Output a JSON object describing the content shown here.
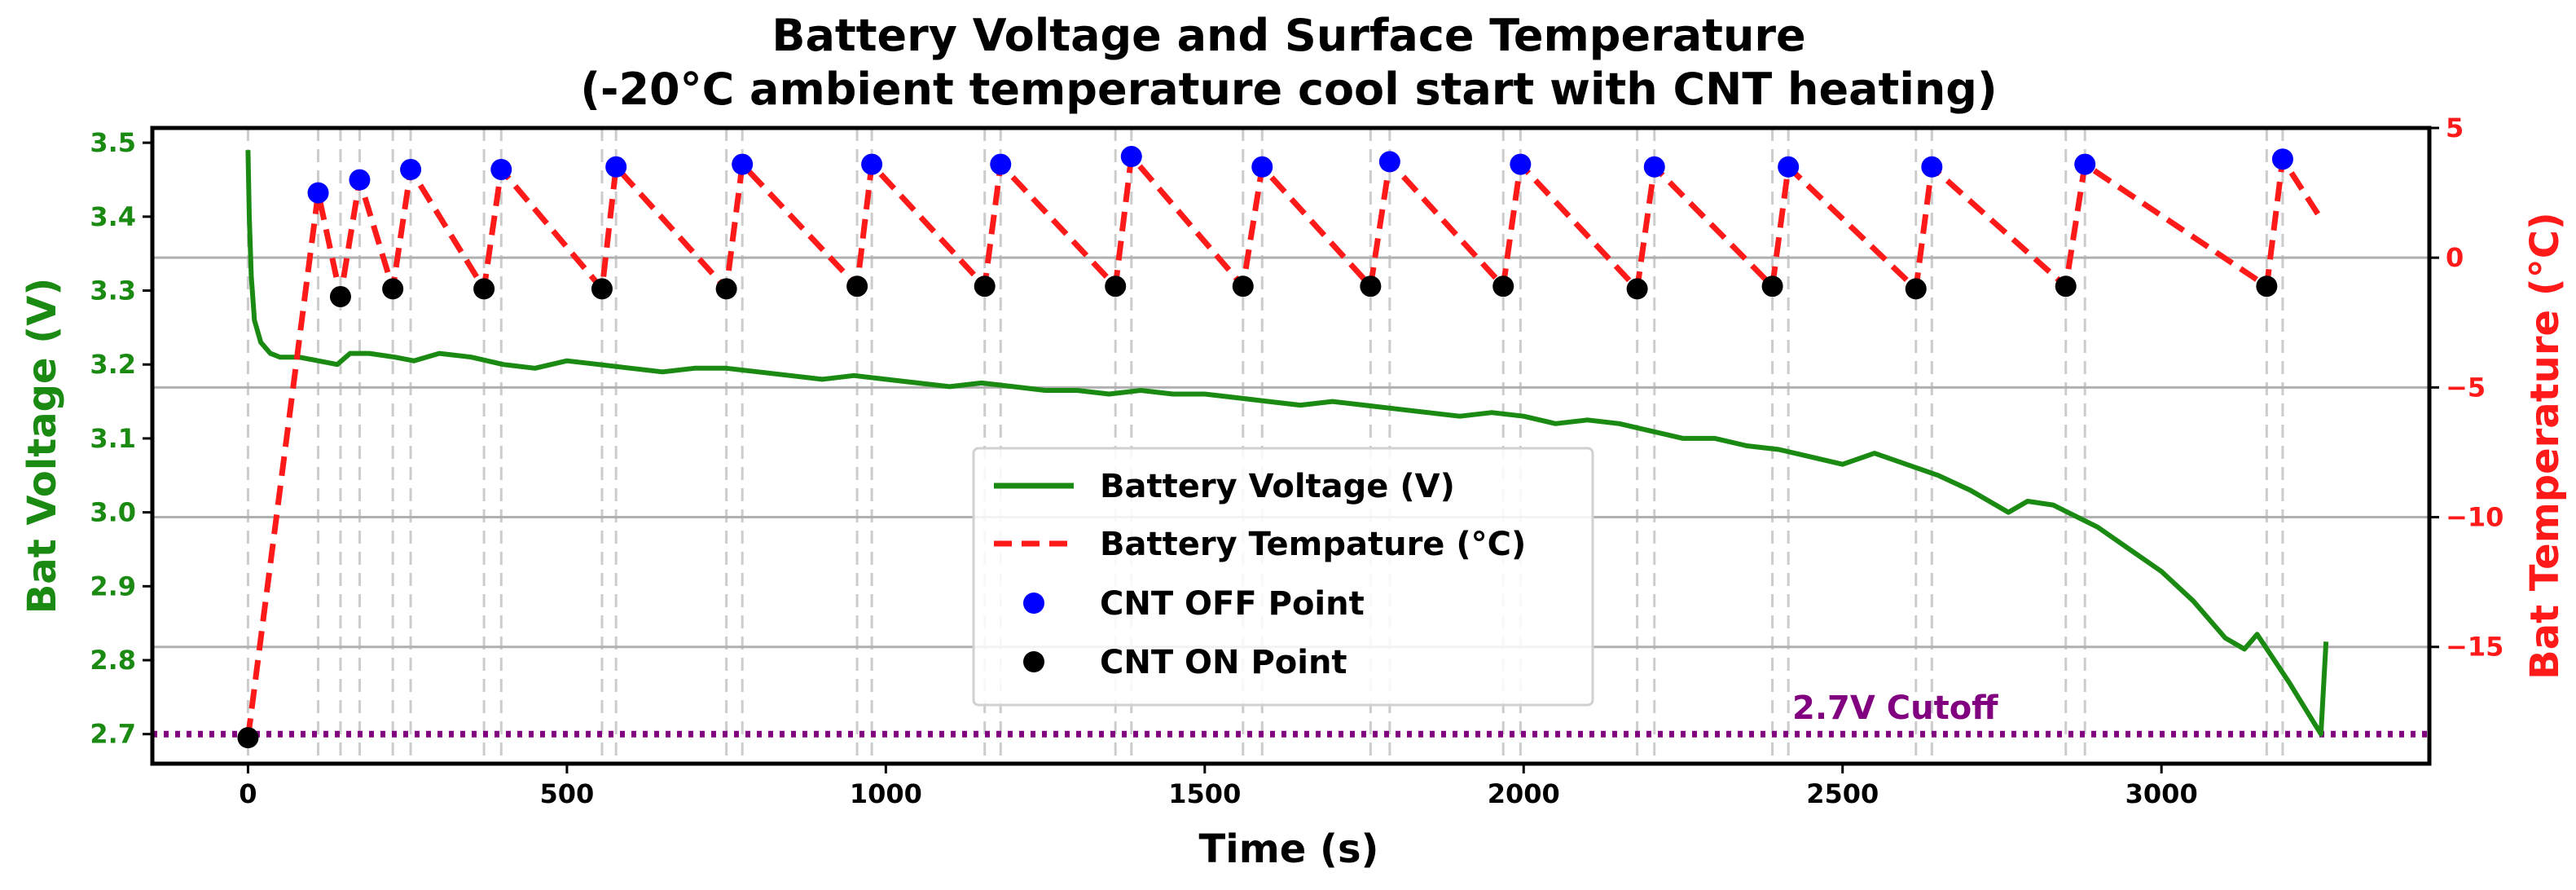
{
  "chart_data": {
    "type": "line",
    "title_line1": "Battery Voltage and Surface Temperature",
    "title_line2": "(-20°C ambient temperature cool start with CNT heating)",
    "xlabel": "Time (s)",
    "ylabel_left": "Bat Voltage (V)",
    "ylabel_right": "Bat Temperature (°C)",
    "xlim": [
      -150,
      3420
    ],
    "ylim_left": [
      2.66,
      3.52
    ],
    "ylim_right": [
      -19.5,
      5
    ],
    "x_ticks": [
      0,
      500,
      1000,
      1500,
      2000,
      2500,
      3000
    ],
    "x_tick_labels": [
      "0",
      "500",
      "1000",
      "1500",
      "2000",
      "2500",
      "3000"
    ],
    "y_left_ticks": [
      2.7,
      2.8,
      2.9,
      3.0,
      3.1,
      3.2,
      3.3,
      3.4,
      3.5
    ],
    "y_left_tick_labels": [
      "2.7",
      "2.8",
      "2.9",
      "3.0",
      "3.1",
      "3.2",
      "3.3",
      "3.4",
      "3.5"
    ],
    "y_right_ticks": [
      -15,
      -10,
      -5,
      0,
      5
    ],
    "y_right_tick_labels": [
      "−15",
      "−10",
      "−5",
      "0",
      "5"
    ],
    "grid": "horizontal solid at right-axis ticks, vertical dashed at CNT events",
    "legend_position": "center",
    "colors": {
      "voltage": "#1a8a12",
      "temperature": "#ff1a1a",
      "off_point": "#0000ff",
      "on_point": "#000000",
      "cutoff": "#800080",
      "grid_h": "#b0b0b0",
      "grid_v": "#cccccc"
    },
    "cutoff": {
      "value": 2.7,
      "label": "2.7V Cutoff"
    },
    "series": [
      {
        "name": "Battery Voltage (V)",
        "axis": "left",
        "x": [
          0,
          2,
          5,
          10,
          20,
          35,
          50,
          80,
          110,
          140,
          160,
          190,
          230,
          260,
          300,
          350,
          400,
          450,
          500,
          550,
          600,
          650,
          700,
          750,
          800,
          850,
          900,
          950,
          1000,
          1050,
          1100,
          1150,
          1200,
          1250,
          1300,
          1350,
          1400,
          1450,
          1500,
          1550,
          1600,
          1650,
          1700,
          1750,
          1800,
          1850,
          1900,
          1950,
          2000,
          2050,
          2100,
          2150,
          2200,
          2250,
          2300,
          2350,
          2400,
          2450,
          2500,
          2550,
          2600,
          2650,
          2700,
          2760,
          2790,
          2830,
          2900,
          2950,
          3000,
          3050,
          3100,
          3130,
          3150,
          3200,
          3250,
          3258
        ],
        "y": [
          3.49,
          3.4,
          3.32,
          3.26,
          3.23,
          3.215,
          3.21,
          3.21,
          3.205,
          3.2,
          3.215,
          3.215,
          3.21,
          3.205,
          3.215,
          3.21,
          3.2,
          3.195,
          3.205,
          3.2,
          3.195,
          3.19,
          3.195,
          3.195,
          3.19,
          3.185,
          3.18,
          3.185,
          3.18,
          3.175,
          3.17,
          3.175,
          3.17,
          3.165,
          3.165,
          3.16,
          3.165,
          3.16,
          3.16,
          3.155,
          3.15,
          3.145,
          3.15,
          3.145,
          3.14,
          3.135,
          3.13,
          3.135,
          3.13,
          3.12,
          3.125,
          3.12,
          3.11,
          3.1,
          3.1,
          3.09,
          3.085,
          3.075,
          3.065,
          3.08,
          3.065,
          3.05,
          3.03,
          3.0,
          3.015,
          3.01,
          2.98,
          2.95,
          2.92,
          2.88,
          2.83,
          2.815,
          2.835,
          2.77,
          2.7,
          2.825
        ]
      },
      {
        "name": "Battery Tempature (°C)",
        "axis": "right",
        "x": [
          0,
          110,
          145,
          175,
          227,
          255,
          370,
          397,
          555,
          577,
          750,
          775,
          955,
          978,
          1155,
          1180,
          1360,
          1385,
          1560,
          1590,
          1760,
          1790,
          1968,
          1995,
          2178,
          2205,
          2390,
          2415,
          2615,
          2640,
          2850,
          2880,
          3165,
          3190,
          3250
        ],
        "y": [
          -18.5,
          2.5,
          -1.5,
          3.0,
          -1.2,
          3.4,
          -1.2,
          3.4,
          -1.2,
          3.5,
          -1.2,
          3.6,
          -1.1,
          3.6,
          -1.1,
          3.6,
          -1.1,
          3.9,
          -1.1,
          3.5,
          -1.1,
          3.7,
          -1.1,
          3.6,
          -1.2,
          3.5,
          -1.1,
          3.5,
          -1.2,
          3.5,
          -1.1,
          3.6,
          -1.1,
          3.8,
          1.5
        ]
      }
    ],
    "cnt_off_points": {
      "name": "CNT OFF Point",
      "x": [
        110,
        175,
        255,
        397,
        577,
        775,
        978,
        1180,
        1385,
        1590,
        1790,
        1995,
        2205,
        2415,
        2640,
        2880,
        3190
      ],
      "y": [
        2.5,
        3.0,
        3.4,
        3.4,
        3.5,
        3.6,
        3.6,
        3.6,
        3.9,
        3.5,
        3.7,
        3.6,
        3.5,
        3.5,
        3.5,
        3.6,
        3.8
      ]
    },
    "cnt_on_points": {
      "name": "CNT ON Point",
      "x": [
        0,
        145,
        227,
        370,
        555,
        750,
        955,
        1155,
        1360,
        1560,
        1760,
        1968,
        2178,
        2390,
        2615,
        2850,
        3165
      ],
      "y": [
        -18.5,
        -1.5,
        -1.2,
        -1.2,
        -1.2,
        -1.2,
        -1.1,
        -1.1,
        -1.1,
        -1.1,
        -1.1,
        -1.1,
        -1.2,
        -1.1,
        -1.2,
        -1.1,
        -1.1
      ]
    }
  }
}
